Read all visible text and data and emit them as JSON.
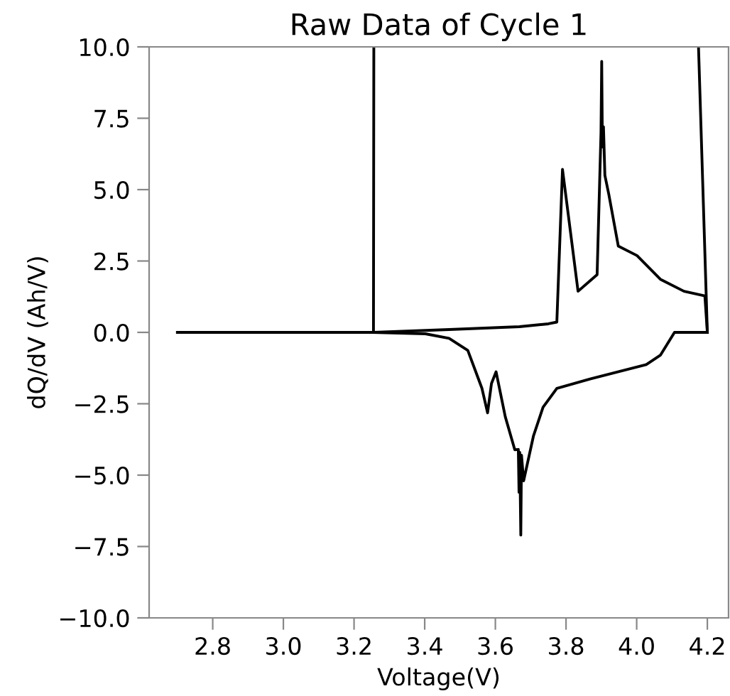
{
  "chart_data": {
    "type": "line",
    "title": "Raw Data of Cycle 1",
    "xlabel": "Voltage(V)",
    "ylabel": "dQ/dV (Ah/V)",
    "xlim": [
      2.62,
      4.26
    ],
    "xticks": [
      {
        "value": 2.8,
        "label": "2.8"
      },
      {
        "value": 3.0,
        "label": "3.0"
      },
      {
        "value": 3.2,
        "label": "3.2"
      },
      {
        "value": 3.4,
        "label": "3.4"
      },
      {
        "value": 3.6,
        "label": "3.6"
      },
      {
        "value": 3.8,
        "label": "3.8"
      },
      {
        "value": 4.0,
        "label": "4.0"
      },
      {
        "value": 4.2,
        "label": "4.2"
      }
    ],
    "ylim": [
      -10,
      10
    ],
    "yticks": [
      {
        "value": -10,
        "label": "−10.0"
      },
      {
        "value": -7.5,
        "label": "−7.5"
      },
      {
        "value": -5,
        "label": "−5.0"
      },
      {
        "value": -2.5,
        "label": "−2.5"
      },
      {
        "value": 0,
        "label": "0.0"
      },
      {
        "value": 2.5,
        "label": "2.5"
      },
      {
        "value": 5,
        "label": "5.0"
      },
      {
        "value": 7.5,
        "label": "7.5"
      },
      {
        "value": 10,
        "label": "10.0"
      }
    ],
    "grid": false,
    "legend": false,
    "marker": "none",
    "line_style": "solid",
    "series": [
      {
        "color": "#000000",
        "x": [
          2.7,
          3.02,
          3.255,
          3.256
        ],
        "values": [
          0,
          0,
          0,
          10
        ]
      },
      {
        "color": "#000000",
        "x": [
          3.256,
          3.469,
          3.668,
          3.75,
          3.774,
          3.79,
          3.834,
          3.888,
          3.899,
          3.901,
          3.903,
          3.906,
          3.91,
          3.921,
          3.948,
          4.001,
          4.067,
          4.134,
          4.193,
          4.2
        ],
        "values": [
          0,
          0.1,
          0.2,
          0.3,
          0.36,
          5.71,
          1.44,
          2.02,
          7.0,
          9.49,
          6.5,
          7.2,
          5.5,
          4.84,
          3.02,
          2.69,
          1.86,
          1.44,
          1.28,
          0
        ]
      },
      {
        "color": "#000000",
        "x": [
          3.256,
          3.402,
          3.469,
          3.522,
          3.562,
          3.578,
          3.589,
          3.602,
          3.628,
          3.655,
          3.665,
          3.667,
          3.669,
          3.672,
          3.674,
          3.68,
          3.708,
          3.735,
          3.774,
          3.868,
          4.027,
          4.067,
          4.107,
          4.2
        ],
        "values": [
          0,
          -0.05,
          -0.21,
          -0.63,
          -1.96,
          -2.82,
          -1.79,
          -1.38,
          -2.95,
          -4.11,
          -4.1,
          -5.6,
          -4.2,
          -7.1,
          -4.3,
          -5.2,
          -3.62,
          -2.62,
          -1.96,
          -1.63,
          -1.13,
          -0.8,
          0,
          0
        ]
      },
      {
        "color": "#000000",
        "x": [
          4.175,
          4.2
        ],
        "values": [
          10,
          0
        ]
      }
    ]
  }
}
